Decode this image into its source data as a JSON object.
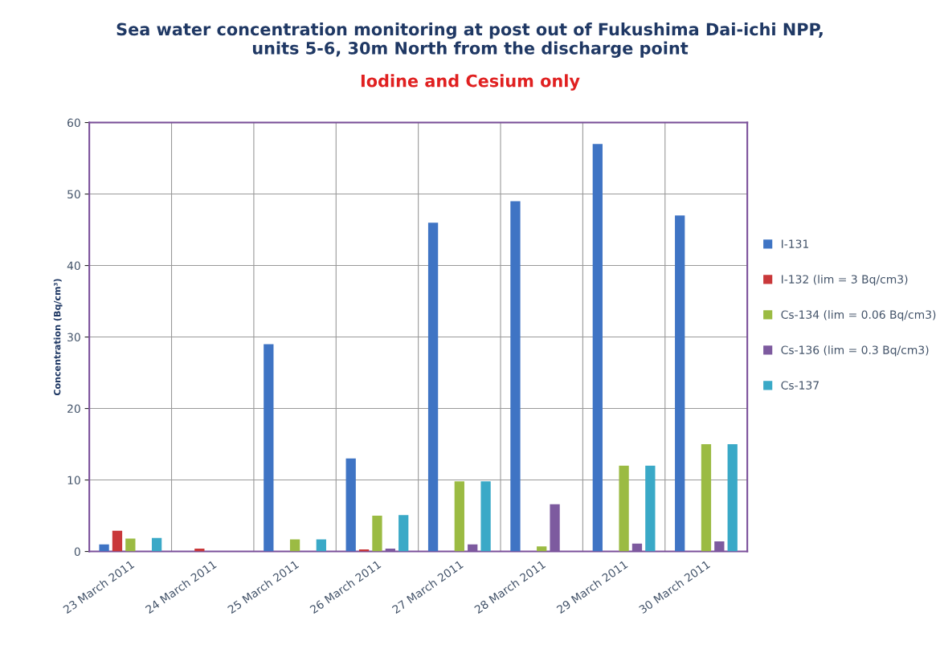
{
  "chart_data": {
    "type": "bar",
    "title": "Sea water concentration monitoring at post out of Fukushima Dai-ichi NPP,\nunits 5-6, 30m North from the discharge point",
    "subtitle": "Iodine and Cesium only",
    "ylabel": "Concentration (Bq/cm³)",
    "categories": [
      "23 March 2011",
      "24 March 2011",
      "25 March 2011",
      "26 March 2011",
      "27 March 2011",
      "28 March 2011",
      "29 March 2011",
      "30 March 2011"
    ],
    "series": [
      {
        "name": "I-131",
        "color": "#3f74c4",
        "values": [
          1,
          null,
          29,
          13,
          46,
          49,
          57,
          47
        ]
      },
      {
        "name": "I-132 (lim = 3 Bq/cm3)",
        "color": "#c9383a",
        "values": [
          2.9,
          0.4,
          null,
          0.3,
          null,
          null,
          null,
          null
        ]
      },
      {
        "name": "Cs-134 (lim = 0.06 Bq/cm3)",
        "color": "#9bbb43",
        "values": [
          1.8,
          null,
          1.7,
          5,
          9.8,
          0.7,
          12,
          15
        ]
      },
      {
        "name": "Cs-136 (lim = 0.3 Bq/cm3)",
        "color": "#7d5a9f",
        "values": [
          null,
          null,
          null,
          0.4,
          1,
          6.6,
          1.1,
          1.4
        ]
      },
      {
        "name": "Cs-137",
        "color": "#3aa9c7",
        "values": [
          1.9,
          null,
          1.7,
          5.1,
          9.8,
          null,
          12,
          15
        ]
      }
    ],
    "ylim": [
      0,
      60
    ],
    "yticks": [
      0,
      10,
      20,
      30,
      40,
      50,
      60
    ],
    "grid": true,
    "legend": "right"
  }
}
